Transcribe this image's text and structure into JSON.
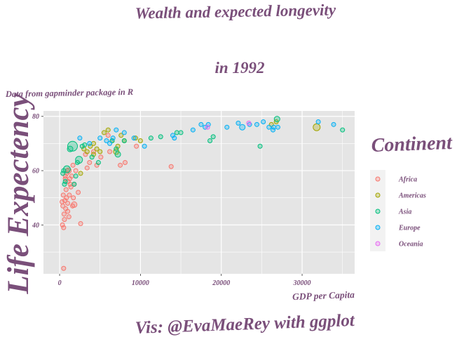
{
  "chart_data": {
    "type": "scatter",
    "title_line1": "Wealth and expected longevity",
    "title_line2": "in 1992",
    "subtitle": "Data from gapminder package in R",
    "xlabel": "GDP per Capita",
    "ylabel": "Life Expectency",
    "caption": "Vis: @EvaMaeRey with ggplot",
    "xlim": [
      -2000,
      36500
    ],
    "ylim": [
      22,
      82
    ],
    "x_ticks": [
      0,
      10000,
      20000,
      30000
    ],
    "x_tick_labels": [
      "0",
      "10000",
      "20000",
      "30000"
    ],
    "y_ticks": [
      40,
      60,
      80
    ],
    "y_tick_labels": [
      "40",
      "60",
      "80"
    ],
    "grid": true,
    "legend_title": "Continent",
    "legend_position": "right",
    "colors": {
      "Africa": "#F8766D",
      "Americas": "#A3A500",
      "Asia": "#00BF7D",
      "Europe": "#00B0F6",
      "Oceania": "#E76BF3",
      "title_text": "#7A4F7A",
      "panel_bg": "#E5E5E5",
      "grid": "#FFFFFF"
    },
    "series": [
      {
        "name": "Africa",
        "points": [
          [
            300,
            48.5,
            3
          ],
          [
            350,
            40,
            3
          ],
          [
            400,
            47,
            3
          ],
          [
            450,
            51,
            3
          ],
          [
            500,
            39,
            3
          ],
          [
            550,
            44,
            3
          ],
          [
            600,
            42,
            3
          ],
          [
            650,
            49,
            3
          ],
          [
            700,
            57,
            3
          ],
          [
            750,
            46,
            3
          ],
          [
            800,
            53,
            3
          ],
          [
            850,
            50,
            3
          ],
          [
            900,
            59,
            3
          ],
          [
            950,
            60,
            3
          ],
          [
            1000,
            48,
            3
          ],
          [
            1050,
            56,
            3
          ],
          [
            1100,
            60,
            4
          ],
          [
            1150,
            43,
            3
          ],
          [
            1200,
            51,
            3
          ],
          [
            1250,
            57,
            3
          ],
          [
            1300,
            55,
            3
          ],
          [
            1400,
            54,
            3
          ],
          [
            1500,
            58,
            3
          ],
          [
            1600,
            47,
            3
          ],
          [
            1650,
            62,
            3
          ],
          [
            1700,
            50,
            3
          ],
          [
            1800,
            55,
            3
          ],
          [
            2000,
            60,
            3
          ],
          [
            2300,
            52,
            3
          ],
          [
            2600,
            40.5,
            3
          ],
          [
            3200,
            66,
            3
          ],
          [
            3400,
            61,
            3
          ],
          [
            3700,
            63,
            3
          ],
          [
            4200,
            67,
            3
          ],
          [
            4600,
            62,
            3
          ],
          [
            5100,
            65,
            3
          ],
          [
            6000,
            73,
            3
          ],
          [
            6200,
            67,
            3
          ],
          [
            7500,
            62,
            3
          ],
          [
            8100,
            63,
            3
          ],
          [
            9500,
            69,
            3
          ],
          [
            13800,
            61.5,
            3
          ],
          [
            500,
            24,
            3
          ],
          [
            1800,
            47.5,
            4
          ],
          [
            700,
            58,
            3
          ],
          [
            1000,
            45,
            3
          ]
        ]
      },
      {
        "name": "Americas",
        "points": [
          [
            2600,
            59,
            3
          ],
          [
            3000,
            68,
            3
          ],
          [
            3400,
            67,
            3
          ],
          [
            3800,
            69,
            3
          ],
          [
            4200,
            70,
            3
          ],
          [
            4600,
            68,
            3
          ],
          [
            5000,
            67,
            3
          ],
          [
            5500,
            74,
            3
          ],
          [
            6000,
            75,
            3
          ],
          [
            6500,
            71,
            3
          ],
          [
            7000,
            67,
            4
          ],
          [
            7200,
            69,
            3
          ],
          [
            7600,
            73,
            3
          ],
          [
            8000,
            71,
            3
          ],
          [
            9400,
            72,
            3
          ],
          [
            10000,
            71,
            3
          ],
          [
            26800,
            78,
            3
          ],
          [
            26200,
            77,
            3
          ],
          [
            31800,
            76,
            5
          ],
          [
            4200,
            66,
            3
          ]
        ]
      },
      {
        "name": "Asia",
        "points": [
          [
            400,
            59,
            3
          ],
          [
            500,
            60,
            3
          ],
          [
            600,
            55,
            3
          ],
          [
            700,
            56,
            3
          ],
          [
            900,
            60.5,
            5
          ],
          [
            1300,
            68,
            4
          ],
          [
            1600,
            69,
            7
          ],
          [
            1800,
            55,
            3
          ],
          [
            2000,
            58,
            3
          ],
          [
            2200,
            63,
            3
          ],
          [
            2400,
            64,
            5
          ],
          [
            2800,
            69,
            3
          ],
          [
            3100,
            69.5,
            3
          ],
          [
            4000,
            65,
            3
          ],
          [
            4800,
            63,
            3
          ],
          [
            6500,
            71,
            3
          ],
          [
            7000,
            68,
            3
          ],
          [
            7200,
            66,
            4
          ],
          [
            8000,
            71,
            3
          ],
          [
            11300,
            72,
            3
          ],
          [
            12500,
            72.5,
            3
          ],
          [
            14500,
            74,
            3
          ],
          [
            15000,
            74,
            3
          ],
          [
            18600,
            71,
            3
          ],
          [
            19000,
            72.5,
            3
          ],
          [
            24800,
            69,
            3
          ],
          [
            26900,
            79,
            4
          ],
          [
            35000,
            75,
            3
          ]
        ]
      },
      {
        "name": "Europe",
        "points": [
          [
            2500,
            72,
            3
          ],
          [
            3700,
            70,
            3
          ],
          [
            5000,
            72,
            3
          ],
          [
            5800,
            71,
            3
          ],
          [
            6200,
            70,
            3
          ],
          [
            6600,
            72,
            3
          ],
          [
            7000,
            75,
            3
          ],
          [
            8000,
            74,
            3
          ],
          [
            9200,
            72,
            3
          ],
          [
            10500,
            69,
            3
          ],
          [
            14000,
            73,
            3
          ],
          [
            14200,
            72,
            3
          ],
          [
            16500,
            75,
            3
          ],
          [
            17500,
            77,
            3
          ],
          [
            18000,
            76,
            3
          ],
          [
            18400,
            77,
            3
          ],
          [
            20700,
            76,
            3
          ],
          [
            22100,
            77.5,
            3
          ],
          [
            22600,
            76,
            4
          ],
          [
            23500,
            77,
            3
          ],
          [
            24400,
            77,
            3
          ],
          [
            25200,
            78,
            3
          ],
          [
            25900,
            76,
            3
          ],
          [
            26400,
            75,
            3
          ],
          [
            26500,
            76,
            3
          ],
          [
            27000,
            76,
            3
          ],
          [
            32000,
            78,
            3
          ],
          [
            33900,
            77,
            3
          ]
        ]
      },
      {
        "name": "Oceania",
        "points": [
          [
            18300,
            76,
            3
          ],
          [
            23400,
            77.5,
            3
          ]
        ]
      }
    ]
  }
}
